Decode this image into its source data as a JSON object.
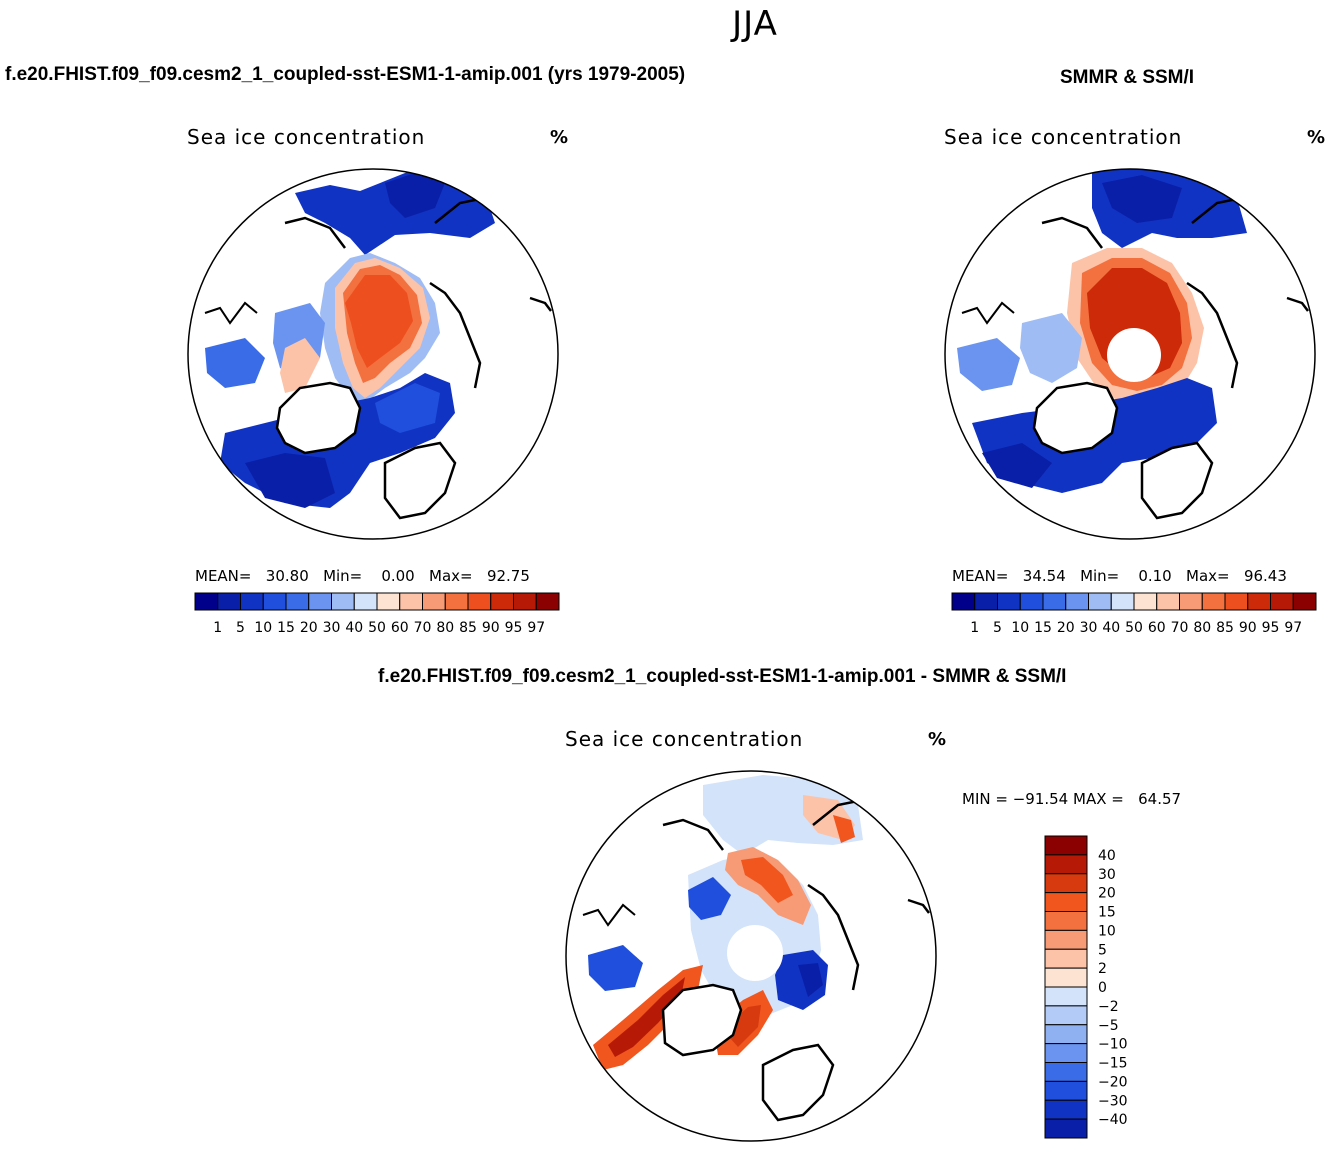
{
  "season": "JJA",
  "panels": {
    "model": {
      "title": "f.e20.FHIST.f09_f09.cesm2_1_coupled-sst-ESM1-1-amip.001 (yrs 1979-2005)",
      "variable": "Sea ice concentration",
      "units": "%",
      "stats": {
        "mean_label": "MEAN=",
        "mean": "30.80",
        "min_label": "Min=",
        "min": "0.00",
        "max_label": "Max=",
        "max": "92.75"
      }
    },
    "obs": {
      "title": "SMMR & SSM/I",
      "variable": "Sea ice concentration",
      "units": "%",
      "stats": {
        "mean_label": "MEAN=",
        "mean": "34.54",
        "min_label": "Min=",
        "min": "0.10",
        "max_label": "Max=",
        "max": "96.43"
      }
    },
    "diff": {
      "title": "f.e20.FHIST.f09_f09.cesm2_1_coupled-sst-ESM1-1-amip.001 - SMMR & SSM/I",
      "variable": "Sea ice concentration",
      "units": "%",
      "stats": {
        "min_label": "MIN = ",
        "min": "−91.54",
        "max_label": "MAX = ",
        "max": "64.57"
      }
    }
  },
  "chart_data": [
    {
      "type": "heatmap",
      "name": "model",
      "projection": "north polar stereographic",
      "title": "f.e20.FHIST.f09_f09.cesm2_1_coupled-sst-ESM1-1-amip.001 (yrs 1979-2005)",
      "variable": "Sea ice concentration",
      "units": "%",
      "colorbar_levels": [
        "1",
        "5",
        "10",
        "15",
        "20",
        "30",
        "40",
        "50",
        "60",
        "70",
        "80",
        "85",
        "90",
        "95",
        "97"
      ],
      "colorbar_colors": [
        "#00008b",
        "#0a1fa8",
        "#1133c4",
        "#1f4fdc",
        "#3a6ce8",
        "#6a94ef",
        "#9fbcf5",
        "#d3e3fa",
        "#fde3d2",
        "#fcc3a8",
        "#f79a76",
        "#f3703f",
        "#ee4f1f",
        "#cc2a08",
        "#b61a06",
        "#8b0000"
      ],
      "mean": 30.8,
      "min": 0.0,
      "max": 92.75
    },
    {
      "type": "heatmap",
      "name": "obs",
      "projection": "north polar stereographic",
      "title": "SMMR & SSM/I",
      "variable": "Sea ice concentration",
      "units": "%",
      "colorbar_levels": [
        "1",
        "5",
        "10",
        "15",
        "20",
        "30",
        "40",
        "50",
        "60",
        "70",
        "80",
        "85",
        "90",
        "95",
        "97"
      ],
      "colorbar_colors": [
        "#00008b",
        "#0a1fa8",
        "#1133c4",
        "#1f4fdc",
        "#3a6ce8",
        "#6a94ef",
        "#9fbcf5",
        "#d3e3fa",
        "#fde3d2",
        "#fcc3a8",
        "#f79a76",
        "#f3703f",
        "#ee4f1f",
        "#cc2a08",
        "#b61a06",
        "#8b0000"
      ],
      "mean": 34.54,
      "min": 0.1,
      "max": 96.43
    },
    {
      "type": "heatmap",
      "name": "difference",
      "projection": "north polar stereographic",
      "title": "f.e20.FHIST.f09_f09.cesm2_1_coupled-sst-ESM1-1-amip.001 - SMMR & SSM/I",
      "variable": "Sea ice concentration",
      "units": "%",
      "colorbar_levels": [
        "40",
        "30",
        "20",
        "15",
        "10",
        "5",
        "2",
        "0",
        "−2",
        "−5",
        "−10",
        "−15",
        "−20",
        "−30",
        "−40"
      ],
      "colorbar_colors": [
        "#8b0000",
        "#b61a06",
        "#d63a0e",
        "#f0561e",
        "#f3703f",
        "#f79a76",
        "#fcc3a8",
        "#fde3d2",
        "#d3e3fa",
        "#b3ccf7",
        "#8fb0f1",
        "#6a94ef",
        "#3a6ce8",
        "#1f4fdc",
        "#1133c4",
        "#0a1fa8"
      ],
      "min": -91.54,
      "max": 64.57
    }
  ]
}
